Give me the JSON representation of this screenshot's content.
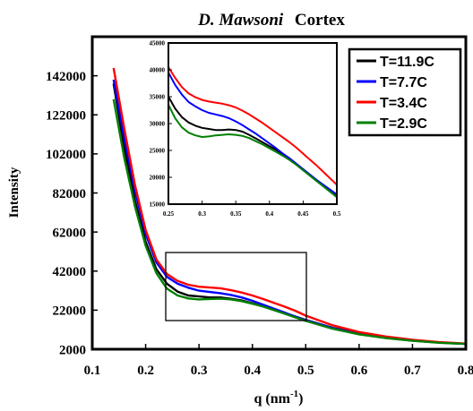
{
  "chart_data": [
    {
      "type": "line",
      "title_italic": "D. Mawsoni",
      "title_rest": "Cortex",
      "xlabel_main": "q (nm",
      "xlabel_sup": "-1",
      "xlabel_close": ")",
      "ylabel": "Intensity",
      "xlim": [
        0.1,
        0.8
      ],
      "ylim": [
        2000,
        162000
      ],
      "xticks": [
        "0.1",
        "0.2",
        "0.3",
        "0.4",
        "0.5",
        "0.6",
        "0.7",
        "0.8"
      ],
      "yticks": [
        "2000",
        "22000",
        "42000",
        "62000",
        "82000",
        "102000",
        "122000",
        "142000"
      ],
      "legend_position": "top-right",
      "grid": false,
      "colors": {
        "T=11.9C": "#000000",
        "T=7.7C": "#0000ff",
        "T=3.4C": "#ff0000",
        "T=2.9C": "#008000"
      },
      "x": [
        0.14,
        0.16,
        0.18,
        0.2,
        0.22,
        0.24,
        0.26,
        0.28,
        0.3,
        0.32,
        0.34,
        0.36,
        0.38,
        0.4,
        0.42,
        0.44,
        0.46,
        0.48,
        0.5,
        0.55,
        0.6,
        0.65,
        0.7,
        0.75,
        0.8
      ],
      "series": [
        {
          "name": "T=11.9C",
          "values": [
            138000,
            105000,
            78000,
            57000,
            43000,
            35500,
            31500,
            29500,
            29000,
            28500,
            28500,
            27800,
            27000,
            25500,
            24000,
            22300,
            20500,
            18800,
            17000,
            13000,
            10000,
            8000,
            6500,
            5500,
            4800
          ]
        },
        {
          "name": "T=7.7C",
          "values": [
            140000,
            110000,
            83000,
            61000,
            46500,
            39000,
            35500,
            33500,
            32000,
            31300,
            30700,
            29800,
            28500,
            26800,
            24800,
            22800,
            20800,
            18700,
            16800,
            12800,
            9800,
            7900,
            6400,
            5400,
            4700
          ]
        },
        {
          "name": "T=3.4C",
          "values": [
            146000,
            115000,
            86000,
            63000,
            48000,
            40500,
            37000,
            35000,
            34000,
            33600,
            33200,
            32200,
            31000,
            29500,
            27700,
            25800,
            23800,
            21700,
            19200,
            14300,
            10800,
            8500,
            6800,
            5600,
            4900
          ]
        },
        {
          "name": "T=2.9C",
          "values": [
            130000,
            100000,
            75000,
            55000,
            41000,
            33000,
            29500,
            28000,
            27500,
            27700,
            27900,
            27500,
            26600,
            25300,
            23800,
            22100,
            20200,
            18300,
            16500,
            12500,
            9600,
            7700,
            6300,
            5300,
            4700
          ]
        }
      ]
    },
    {
      "type": "line",
      "xlim": [
        0.25,
        0.5
      ],
      "ylim": [
        15000,
        45000
      ],
      "xticks": [
        "0.25",
        "0.3",
        "0.35",
        "0.4",
        "0.45",
        "0.5"
      ],
      "yticks": [
        "15000",
        "20000",
        "25000",
        "30000",
        "35000",
        "40000",
        "45000"
      ],
      "x": [
        0.25,
        0.26,
        0.27,
        0.28,
        0.29,
        0.3,
        0.31,
        0.32,
        0.33,
        0.34,
        0.35,
        0.36,
        0.37,
        0.38,
        0.39,
        0.4,
        0.41,
        0.42,
        0.43,
        0.44,
        0.45,
        0.46,
        0.47,
        0.48,
        0.49,
        0.5
      ],
      "series": [
        {
          "name": "T=11.9C",
          "values": [
            35000,
            32800,
            31200,
            30200,
            29600,
            29200,
            29000,
            28800,
            28800,
            28900,
            28800,
            28500,
            27900,
            27200,
            26500,
            25800,
            25100,
            24300,
            23500,
            22500,
            21500,
            20500,
            19500,
            18500,
            17500,
            16500
          ]
        },
        {
          "name": "T=7.7C",
          "values": [
            39500,
            37200,
            35400,
            34000,
            33200,
            32500,
            32000,
            31700,
            31400,
            31000,
            30400,
            29700,
            28900,
            28100,
            27200,
            26300,
            25400,
            24400,
            23500,
            22500,
            21500,
            20500,
            19500,
            18600,
            17700,
            16800
          ]
        },
        {
          "name": "T=3.4C",
          "values": [
            40500,
            38500,
            36800,
            35600,
            34900,
            34400,
            34100,
            33900,
            33700,
            33400,
            33000,
            32400,
            31700,
            30900,
            30100,
            29200,
            28300,
            27400,
            26500,
            25500,
            24400,
            23300,
            22200,
            21000,
            19800,
            18600
          ]
        },
        {
          "name": "T=2.9C",
          "values": [
            33500,
            31000,
            29300,
            28300,
            27800,
            27500,
            27600,
            27800,
            27900,
            28000,
            27900,
            27700,
            27300,
            26700,
            26100,
            25400,
            24700,
            24000,
            23200,
            22300,
            21300,
            20300,
            19300,
            18300,
            17300,
            16300
          ]
        }
      ]
    }
  ]
}
